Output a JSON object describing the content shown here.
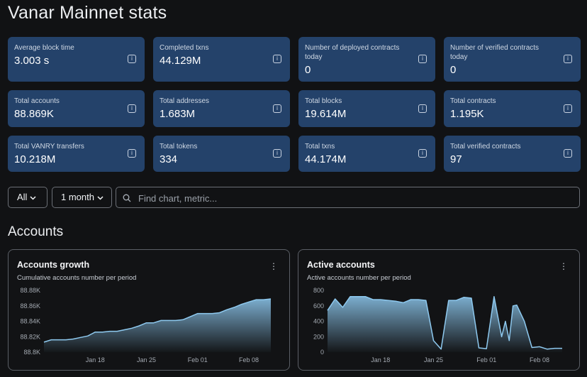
{
  "page": {
    "title": "Vanar Mainnet stats"
  },
  "stats": [
    {
      "label": "Average block time",
      "value": "3.003 s"
    },
    {
      "label": "Completed txns",
      "value": "44.129M"
    },
    {
      "label": "Number of deployed contracts today",
      "value": "0"
    },
    {
      "label": "Number of verified contracts today",
      "value": "0"
    },
    {
      "label": "Total accounts",
      "value": "88.869K"
    },
    {
      "label": "Total addresses",
      "value": "1.683M"
    },
    {
      "label": "Total blocks",
      "value": "19.614M"
    },
    {
      "label": "Total contracts",
      "value": "1.195K"
    },
    {
      "label": "Total VANRY transfers",
      "value": "10.218M"
    },
    {
      "label": "Total tokens",
      "value": "334"
    },
    {
      "label": "Total txns",
      "value": "44.174M"
    },
    {
      "label": "Total verified contracts",
      "value": "97"
    }
  ],
  "info_icon_glyph": "i",
  "filters": {
    "section_select": "All",
    "interval_select": "1 month",
    "search_placeholder": "Find chart, metric..."
  },
  "section": {
    "title": "Accounts"
  },
  "charts": [
    {
      "title": "Accounts growth",
      "subtitle": "Cumulative accounts number per period"
    },
    {
      "title": "Active accounts",
      "subtitle": "Active accounts number per period"
    }
  ],
  "menu_glyph": "⋮",
  "colors": {
    "accent_line": "#8ec9ef",
    "card_bg": "#24426a"
  },
  "chart_data": [
    {
      "type": "area",
      "title": "Accounts growth",
      "subtitle": "Cumulative accounts number per period",
      "ylim": [
        88.8,
        88.88
      ],
      "yticks": [
        "88.8K",
        "88.82K",
        "88.84K",
        "88.86K",
        "88.88K"
      ],
      "ytick_values": [
        88.8,
        88.82,
        88.84,
        88.86,
        88.88
      ],
      "xlim": [
        0,
        31
      ],
      "xticks": [
        "Jan 18",
        "Jan 25",
        "Feb 01",
        "Feb 08"
      ],
      "xtick_positions": [
        7,
        14,
        21,
        28
      ],
      "x": [
        0,
        1,
        2,
        3,
        4,
        5,
        6,
        7,
        8,
        9,
        10,
        11,
        12,
        13,
        14,
        15,
        16,
        17,
        18,
        19,
        20,
        21,
        22,
        23,
        24,
        25,
        26,
        27,
        28,
        29,
        30,
        31
      ],
      "values": [
        88.813,
        88.816,
        88.816,
        88.816,
        88.817,
        88.819,
        88.821,
        88.826,
        88.826,
        88.827,
        88.827,
        88.829,
        88.831,
        88.834,
        88.838,
        88.838,
        88.841,
        88.841,
        88.841,
        88.842,
        88.846,
        88.85,
        88.85,
        88.85,
        88.851,
        88.855,
        88.858,
        88.862,
        88.865,
        88.868,
        88.868,
        88.869
      ]
    },
    {
      "type": "area",
      "title": "Active accounts",
      "subtitle": "Active accounts number per period",
      "ylim": [
        0,
        800
      ],
      "yticks": [
        "0",
        "200",
        "400",
        "600",
        "800"
      ],
      "ytick_values": [
        0,
        200,
        400,
        600,
        800
      ],
      "xlim": [
        0,
        31
      ],
      "xticks": [
        "Jan 18",
        "Jan 25",
        "Feb 01",
        "Feb 08"
      ],
      "xtick_positions": [
        7,
        14,
        21,
        28
      ],
      "x": [
        0,
        1,
        2,
        3,
        3.5,
        5,
        6,
        7,
        8,
        9,
        10,
        11,
        12,
        13,
        14,
        15,
        16,
        17,
        18,
        19,
        20,
        21,
        22,
        23,
        23.5,
        24,
        24.5,
        25,
        26,
        27,
        28,
        29,
        30,
        31
      ],
      "values": [
        540,
        690,
        580,
        720,
        720,
        720,
        680,
        680,
        670,
        660,
        640,
        680,
        680,
        670,
        150,
        40,
        670,
        670,
        710,
        700,
        55,
        45,
        720,
        200,
        400,
        150,
        600,
        610,
        400,
        60,
        70,
        40,
        50,
        50
      ]
    }
  ]
}
